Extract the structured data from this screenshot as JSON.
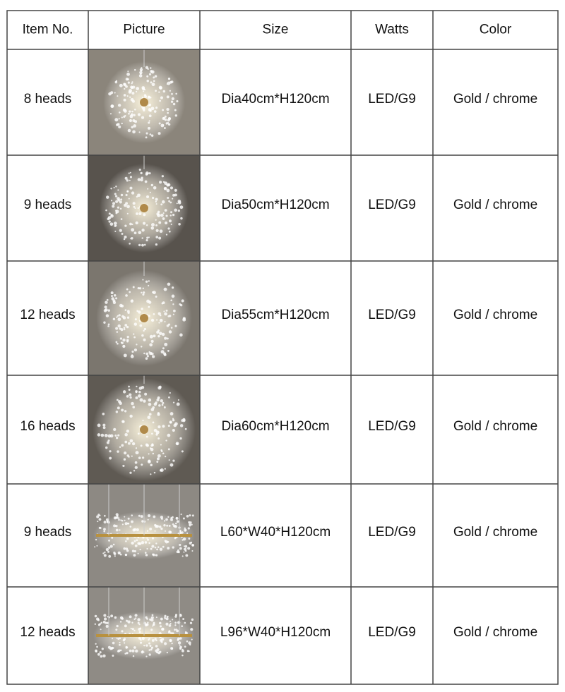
{
  "header": {
    "columns": [
      "Item No.",
      "Picture",
      "Size",
      "Watts",
      "Color"
    ]
  },
  "table": {
    "rows": [
      [
        "8 heads",
        "Dia40cm*H120cm",
        "LED/G9",
        "Gold / chrome"
      ],
      [
        "9 heads",
        "Dia50cm*H120cm",
        "LED/G9",
        "Gold / chrome"
      ],
      [
        "12 heads",
        "Dia55cm*H120cm",
        "LED/G9",
        "Gold / chrome"
      ],
      [
        "16 heads",
        "Dia60cm*H120cm",
        "LED/G9",
        "Gold / chrome"
      ],
      [
        "9 heads",
        "L60*W40*H120cm",
        "LED/G9",
        "Gold / chrome"
      ],
      [
        "12 heads",
        "L96*W40*H120cm",
        "LED/G9",
        "Gold / chrome"
      ]
    ]
  }
}
